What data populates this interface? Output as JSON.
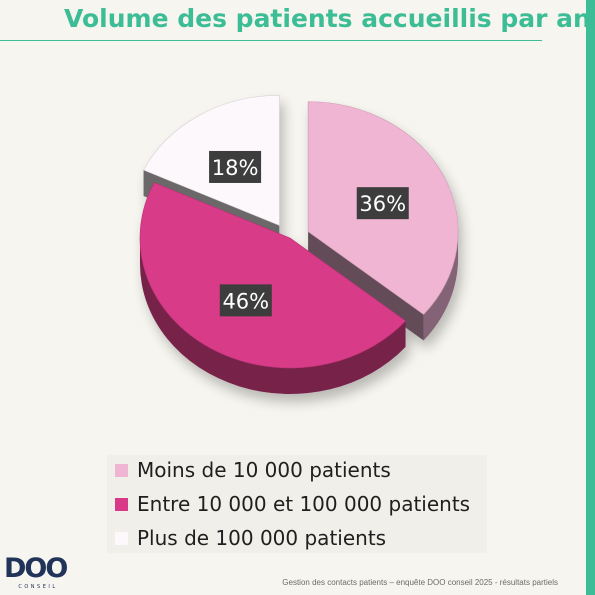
{
  "title": "Volume des patients accueillis par an",
  "chart_data": {
    "type": "pie",
    "title": "Volume des patients accueillis par an",
    "slices": [
      {
        "label": "Moins de 10 000 patients",
        "value": 36,
        "value_label": "36%",
        "color": "#efb5d3",
        "exploded": true
      },
      {
        "label": "Entre 10 000 et 100 000 patients",
        "value": 46,
        "value_label": "46%",
        "color": "#d83a87",
        "exploded": false
      },
      {
        "label": "Plus de 100 000 patients",
        "value": 18,
        "value_label": "18%",
        "color": "#fdf8fb",
        "exploded": true
      }
    ],
    "legend_position": "bottom",
    "style": "3d"
  },
  "logo": {
    "text": "DOO",
    "subtext": "CONSEIL"
  },
  "footer": "Gestion des contacts patients – enquête DOO conseil 2025 - résultats partiels",
  "colors": {
    "accent": "#3dbd95",
    "logo": "#22335a"
  }
}
